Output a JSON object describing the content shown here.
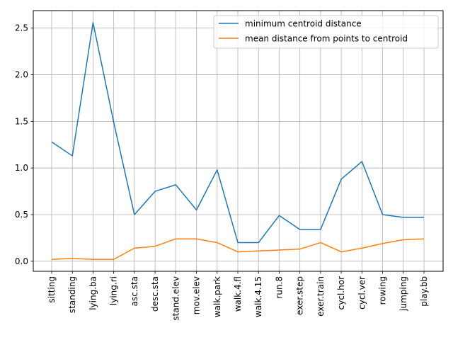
{
  "chart_data": {
    "type": "line",
    "categories": [
      "sitting",
      "standing",
      "lying.ba",
      "lying.ri",
      "asc.sta",
      "desc.sta",
      "stand.elev",
      "mov.elev",
      "walk.park",
      "walk.4.fl",
      "walk.4.15",
      "run.8",
      "exer.step",
      "exer.train",
      "cycl.hor",
      "cycl.ver",
      "rowing",
      "jumping",
      "play.bb"
    ],
    "series": [
      {
        "name": "minimum centroid distance",
        "color": "#1f77b4",
        "values": [
          1.28,
          1.13,
          2.56,
          1.49,
          0.5,
          0.75,
          0.82,
          0.55,
          0.98,
          0.2,
          0.2,
          0.49,
          0.34,
          0.34,
          0.88,
          1.07,
          0.5,
          0.47,
          0.47
        ]
      },
      {
        "name": "mean distance from points to centroid",
        "color": "#ff7f0e",
        "values": [
          0.02,
          0.03,
          0.02,
          0.02,
          0.14,
          0.16,
          0.24,
          0.24,
          0.2,
          0.1,
          0.11,
          0.12,
          0.13,
          0.2,
          0.1,
          0.14,
          0.19,
          0.23,
          0.24
        ]
      }
    ],
    "yticks": [
      "0.0",
      "0.5",
      "1.0",
      "1.5",
      "2.0",
      "2.5"
    ],
    "ylim": [
      -0.108,
      2.688
    ],
    "grid": true,
    "legend": "top-right"
  }
}
